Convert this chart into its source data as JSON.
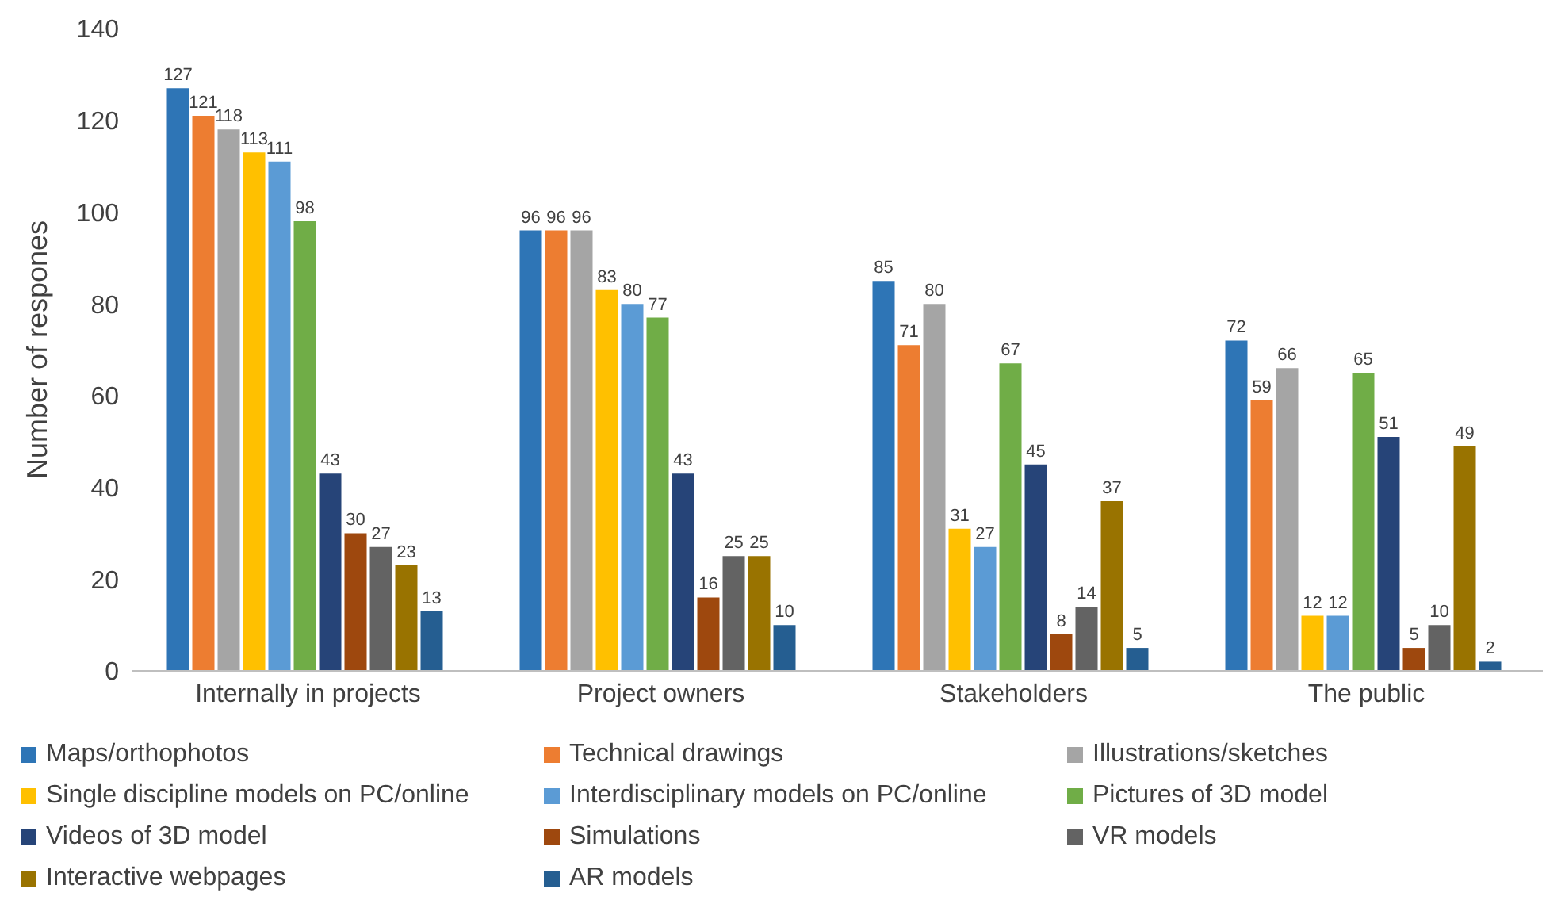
{
  "chart_data": {
    "type": "bar",
    "ylabel": "Number of respones",
    "categories": [
      "Internally in projects",
      "Project owners",
      "Stakeholders",
      "The public"
    ],
    "series": [
      {
        "name": "Maps/orthophotos",
        "color": "#2e75b6",
        "values": [
          127,
          96,
          85,
          72
        ]
      },
      {
        "name": "Technical drawings",
        "color": "#ed7d31",
        "values": [
          121,
          96,
          71,
          59
        ]
      },
      {
        "name": "Illustrations/sketches",
        "color": "#a5a5a5",
        "values": [
          118,
          96,
          80,
          66
        ]
      },
      {
        "name": "Single discipline models on PC/online",
        "color": "#ffc000",
        "values": [
          113,
          83,
          31,
          12
        ]
      },
      {
        "name": "Interdisciplinary models on PC/online",
        "color": "#5b9bd5",
        "values": [
          111,
          80,
          27,
          12
        ]
      },
      {
        "name": "Pictures of 3D model",
        "color": "#70ad47",
        "values": [
          98,
          77,
          67,
          65
        ]
      },
      {
        "name": "Videos of 3D model",
        "color": "#264478",
        "values": [
          43,
          43,
          45,
          51
        ]
      },
      {
        "name": "Simulations",
        "color": "#9e480e",
        "values": [
          30,
          16,
          8,
          5
        ]
      },
      {
        "name": "VR models",
        "color": "#636363",
        "values": [
          27,
          25,
          14,
          10
        ]
      },
      {
        "name": "Interactive webpages",
        "color": "#997300",
        "values": [
          23,
          25,
          37,
          49
        ]
      },
      {
        "name": "AR models",
        "color": "#255e91",
        "values": [
          13,
          10,
          5,
          2
        ]
      }
    ],
    "ylim": [
      0,
      140
    ],
    "yticks": [
      0,
      20,
      40,
      60,
      80,
      100,
      120,
      140
    ],
    "grid": false,
    "legend": "bottom",
    "data_labels": true
  }
}
